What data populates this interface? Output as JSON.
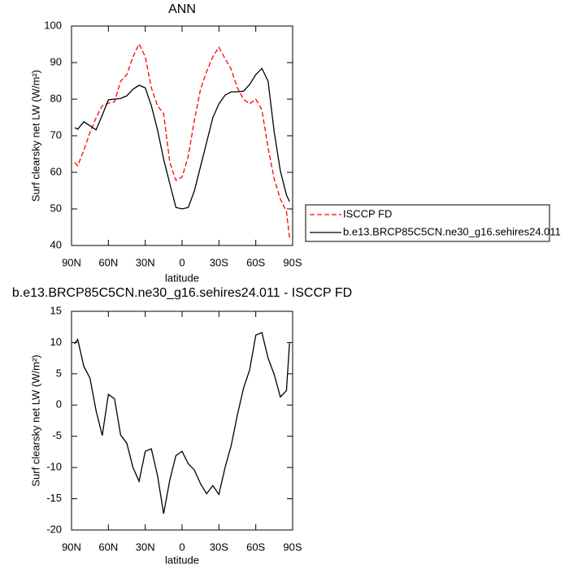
{
  "chart_data": [
    {
      "type": "line",
      "title": "ANN",
      "xlabel": "latitude",
      "ylabel": "Surf clearsky net LW (W/m²)",
      "x": [
        87.5,
        85,
        80,
        75,
        70,
        65,
        60,
        55,
        50,
        45,
        40,
        35,
        30,
        25,
        20,
        15,
        10,
        5,
        0,
        -5,
        -10,
        -15,
        -20,
        -25,
        -30,
        -35,
        -40,
        -45,
        -50,
        -55,
        -60,
        -65,
        -70,
        -75,
        -80,
        -85,
        -87.5
      ],
      "xlim": [
        90,
        -90
      ],
      "xticks": [
        {
          "value": 90,
          "label": "90N"
        },
        {
          "value": 60,
          "label": "60N"
        },
        {
          "value": 30,
          "label": "30N"
        },
        0,
        {
          "value": -30,
          "label": "30S"
        },
        {
          "value": -60,
          "label": "60S"
        },
        {
          "value": -90,
          "label": "90S"
        }
      ],
      "ylim": [
        40,
        100
      ],
      "yticks": [
        40,
        50,
        60,
        70,
        80,
        90,
        100
      ],
      "series": [
        {
          "name": "ISCCP FD",
          "color": "#ff0000",
          "dash": true,
          "values": [
            62.7,
            61.8,
            66,
            70.9,
            74.9,
            78.2,
            78.9,
            79.3,
            84.9,
            86.7,
            91.6,
            95.1,
            91.6,
            83.1,
            78.2,
            76,
            62.7,
            57.8,
            58.7,
            64.4,
            74.2,
            82.7,
            87.6,
            91.6,
            94.2,
            91.1,
            88.2,
            83.1,
            80,
            78.7,
            80,
            77.1,
            66.7,
            58.2,
            52.7,
            49.3,
            42.2
          ]
        },
        {
          "name": "b.e13.BRCP85C5CN.ne30_g16.sehires24.011",
          "color": "#000000",
          "dash": false,
          "values": [
            72.2,
            71.8,
            73.8,
            72.7,
            71.6,
            75.6,
            79.8,
            80,
            80.2,
            80.9,
            82.7,
            83.8,
            83.1,
            78.2,
            71.6,
            63.6,
            56.9,
            50.4,
            50,
            50.4,
            54.9,
            61.6,
            68.2,
            74.9,
            78.7,
            81.1,
            82,
            82,
            82.2,
            84,
            86.7,
            88.4,
            84.9,
            71.1,
            60.4,
            53.8,
            52
          ]
        }
      ]
    },
    {
      "type": "line",
      "title": "b.e13.BRCP85C5CN.ne30_g16.sehires24.011 - ISCCP FD",
      "xlabel": "latitude",
      "ylabel": "Surf clearsky net LW (W/m²)",
      "x": [
        87.5,
        85,
        80,
        75,
        70,
        65,
        60,
        55,
        50,
        45,
        40,
        35,
        30,
        25,
        20,
        15,
        10,
        5,
        0,
        -5,
        -10,
        -15,
        -20,
        -25,
        -30,
        -35,
        -40,
        -45,
        -50,
        -55,
        -60,
        -65,
        -70,
        -75,
        -80,
        -85,
        -87.5
      ],
      "xlim": [
        90,
        -90
      ],
      "xticks": [
        {
          "value": 90,
          "label": "90N"
        },
        {
          "value": 60,
          "label": "60N"
        },
        {
          "value": 30,
          "label": "30N"
        },
        0,
        {
          "value": -30,
          "label": "30S"
        },
        {
          "value": -60,
          "label": "60S"
        },
        {
          "value": -90,
          "label": "90S"
        }
      ],
      "ylim": [
        -20,
        15
      ],
      "yticks": [
        -20,
        -15,
        -10,
        -5,
        0,
        5,
        10,
        15
      ],
      "series": [
        {
          "color": "#000000",
          "dash": false,
          "values": [
            9.8,
            10.5,
            6.2,
            4.3,
            -0.9,
            -4.9,
            1.7,
            1,
            -4.8,
            -6.1,
            -10,
            -12.2,
            -7.4,
            -7,
            -11.3,
            -17.4,
            -12,
            -8.1,
            -7.4,
            -9.4,
            -10.4,
            -12.6,
            -14.2,
            -12.9,
            -14.3,
            -10,
            -6.5,
            -1.6,
            2.7,
            5.6,
            11.2,
            11.6,
            7.5,
            4.9,
            1.3,
            2.3,
            9.9
          ]
        }
      ]
    }
  ]
}
